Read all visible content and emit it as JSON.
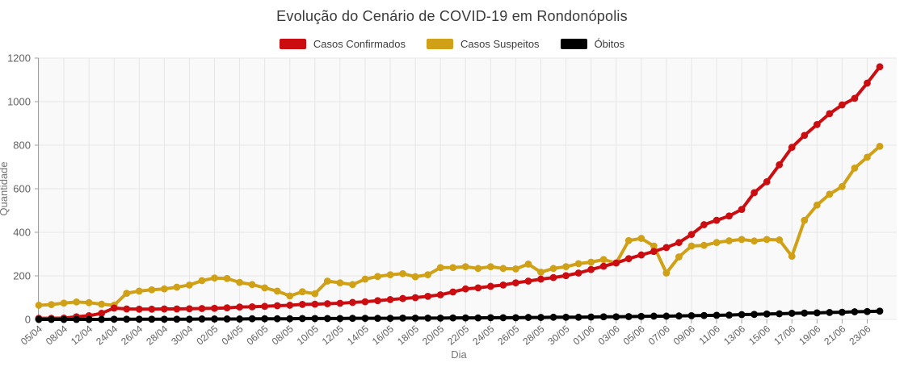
{
  "title": "Evolução do Cenário de COVID-19 em Rondonópolis",
  "legend": [
    {
      "label": "Casos Confirmados",
      "color": "#cb0c10"
    },
    {
      "label": "Casos Suspeitos",
      "color": "#d0a116"
    },
    {
      "label": "Óbitos",
      "color": "#000000"
    }
  ],
  "chart_data": {
    "type": "line",
    "title": "Evolução do Cenário de COVID-19 em Rondonópolis",
    "xlabel": "Dia",
    "ylabel": "Quantidade",
    "ylim": [
      0,
      1200
    ],
    "yticks": [
      0,
      200,
      400,
      600,
      800,
      1000,
      1200
    ],
    "grid": true,
    "legend_position": "top",
    "tick_every": 2,
    "tick_labels": [
      "05/04",
      "08/04",
      "12/04",
      "24/04",
      "26/04",
      "28/04",
      "30/04",
      "02/05",
      "04/05",
      "06/05",
      "08/05",
      "10/05",
      "12/05",
      "14/05",
      "16/05",
      "18/05",
      "20/05",
      "22/05",
      "24/05",
      "26/05",
      "28/05",
      "30/05",
      "01/06",
      "03/06",
      "05/06",
      "07/06",
      "09/06",
      "11/06",
      "13/06",
      "15/06",
      "17/06",
      "19/06",
      "21/06",
      "23/06"
    ],
    "series": [
      {
        "name": "Casos Confirmados",
        "color": "#cb0c10",
        "values": [
          5,
          5,
          6,
          12,
          17,
          28,
          52,
          48,
          47,
          47,
          48,
          48,
          49,
          50,
          51,
          53,
          57,
          58,
          60,
          63,
          65,
          69,
          70,
          72,
          74,
          78,
          81,
          86,
          91,
          96,
          100,
          106,
          113,
          126,
          140,
          145,
          152,
          158,
          168,
          176,
          185,
          192,
          201,
          213,
          229,
          244,
          259,
          279,
          296,
          312,
          330,
          353,
          390,
          435,
          455,
          475,
          505,
          582,
          632,
          710,
          790,
          845,
          895,
          945,
          985,
          1015,
          1085,
          1160
        ]
      },
      {
        "name": "Casos Suspeitos",
        "color": "#d0a116",
        "values": [
          65,
          68,
          75,
          80,
          77,
          70,
          65,
          120,
          130,
          136,
          140,
          148,
          158,
          178,
          190,
          188,
          170,
          160,
          145,
          130,
          108,
          127,
          118,
          176,
          168,
          160,
          185,
          197,
          205,
          210,
          196,
          205,
          238,
          238,
          242,
          234,
          242,
          234,
          232,
          254,
          217,
          234,
          242,
          256,
          263,
          275,
          259,
          362,
          372,
          337,
          213,
          287,
          337,
          340,
          353,
          361,
          367,
          360,
          367,
          365,
          290,
          455,
          525,
          575,
          610,
          695,
          745,
          795
        ]
      },
      {
        "name": "Óbitos",
        "color": "#000000",
        "values": [
          0,
          0,
          0,
          0,
          0,
          0,
          1,
          1,
          1,
          1,
          1,
          1,
          1,
          2,
          2,
          2,
          2,
          3,
          3,
          3,
          3,
          4,
          4,
          4,
          4,
          5,
          5,
          5,
          5,
          6,
          6,
          6,
          6,
          7,
          7,
          7,
          8,
          8,
          8,
          9,
          9,
          10,
          10,
          10,
          11,
          12,
          12,
          13,
          14,
          15,
          15,
          16,
          17,
          18,
          19,
          20,
          22,
          23,
          25,
          26,
          28,
          29,
          30,
          32,
          33,
          35,
          36,
          38
        ]
      }
    ]
  }
}
